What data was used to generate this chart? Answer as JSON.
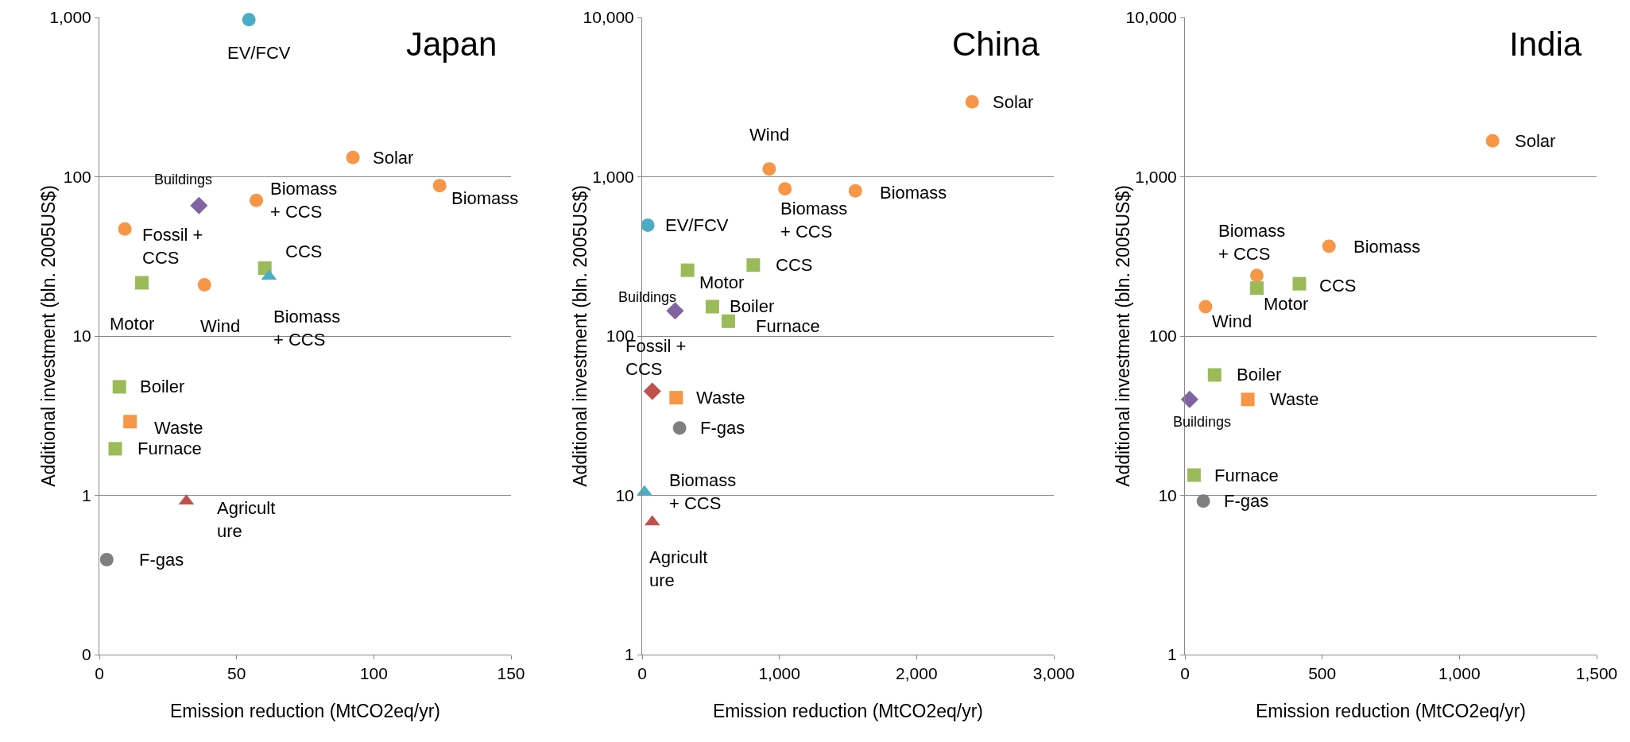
{
  "chart_data": [
    {
      "type": "scatter",
      "xlabel": "Emission reduction (MtCO2eq/yr)",
      "ylabel": "Additional investment (bln. 2005US$)",
      "log": "y",
      "grid": "y",
      "xlim": [
        0,
        150
      ],
      "xticks": [
        0,
        50,
        100,
        150
      ],
      "ylim": [
        0.1,
        1000
      ],
      "yticks": [
        {
          "value": 0.1,
          "label": "0"
        },
        1,
        10,
        100,
        {
          "value": 1000,
          "label": "1,000"
        }
      ],
      "series": [
        {
          "color": "#4bacc6",
          "marker": "circle",
          "x": [
            54.5
          ],
          "values": [
            970
          ]
        },
        {
          "color": "#f79646",
          "marker": "circle",
          "x": [
            92.4,
            124,
            57.2,
            9.3,
            38.3
          ],
          "values": [
            132,
            88,
            71,
            47,
            21
          ]
        },
        {
          "color": "#8064a2",
          "marker": "diamond",
          "x": [
            36.3
          ],
          "values": [
            66
          ]
        },
        {
          "color": "#9bbb59",
          "marker": "square",
          "x": [
            15.5,
            60.3,
            7.3,
            5.8
          ],
          "values": [
            21.6,
            26.7,
            4.8,
            1.96
          ]
        },
        {
          "color": "#4bacc6",
          "marker": "triangle",
          "x": [
            61.8
          ],
          "values": [
            23.7
          ]
        },
        {
          "color": "#f79646",
          "marker": "square",
          "x": [
            11.2
          ],
          "values": [
            2.9
          ]
        },
        {
          "color": "#c0504d",
          "marker": "triangle",
          "x": [
            31.7
          ],
          "values": [
            0.92
          ]
        },
        {
          "color": "#7f7f7f",
          "marker": "circle",
          "x": [
            2.7
          ],
          "values": [
            0.395
          ]
        }
      ],
      "annotations": [
        "Japan",
        {
          "text": "EV/FCV",
          "x": 54.5,
          "y": 970
        },
        {
          "text": "Solar",
          "x": 92.4,
          "y": 132
        },
        {
          "text": "Biomass",
          "x": 124,
          "y": 88
        },
        {
          "text": "Biomass\n+ CCS",
          "x": 57.2,
          "y": 71
        },
        {
          "text": "Buildings",
          "x": 36.3,
          "y": 66
        },
        {
          "text": "Fossil +\nCCS",
          "x": 9.3,
          "y": 47
        },
        {
          "text": "Motor",
          "x": 15.5,
          "y": 21.6
        },
        {
          "text": "Wind",
          "x": 38.3,
          "y": 21
        },
        {
          "text": "CCS",
          "x": 60.3,
          "y": 26.7
        },
        {
          "text": "Biomass\n+ CCS",
          "x": 61.8,
          "y": 23.7
        },
        {
          "text": "Boiler",
          "x": 7.3,
          "y": 4.8
        },
        {
          "text": "Waste",
          "x": 11.2,
          "y": 2.9
        },
        {
          "text": "Furnace",
          "x": 5.8,
          "y": 1.96
        },
        {
          "text": "Agricult\nure",
          "x": 31.7,
          "y": 0.92
        },
        {
          "text": "F-gas",
          "x": 2.7,
          "y": 0.395
        }
      ]
    },
    {
      "type": "scatter",
      "xlabel": "Emission reduction (MtCO2eq/yr)",
      "ylabel": "Additional investment (bln. 2005US$)",
      "log": "y",
      "grid": "y",
      "xlim": [
        0,
        3000
      ],
      "xticks": [
        0,
        {
          "value": 1000,
          "label": "1,000"
        },
        {
          "value": 2000,
          "label": "2,000"
        },
        {
          "value": 3000,
          "label": "3,000"
        }
      ],
      "ylim": [
        1,
        10000
      ],
      "yticks": [
        1,
        10,
        100,
        {
          "value": 1000,
          "label": "1,000"
        },
        {
          "value": 10000,
          "label": "10,000"
        }
      ],
      "series": [
        {
          "color": "#f79646",
          "marker": "circle",
          "x": [
            2405,
            926,
            1041,
            1554
          ],
          "values": [
            2950,
            1120,
            840,
            815
          ]
        },
        {
          "color": "#4bacc6",
          "marker": "circle",
          "x": [
            41
          ],
          "values": [
            496
          ]
        },
        {
          "color": "#9bbb59",
          "marker": "square",
          "x": [
            810,
            331,
            512,
            628
          ],
          "values": [
            279,
            259,
            153,
            124
          ]
        },
        {
          "color": "#8064a2",
          "marker": "diamond",
          "x": [
            240
          ],
          "values": [
            144
          ]
        },
        {
          "color": "#c0504d",
          "marker": "diamond",
          "x": [
            74
          ],
          "values": [
            45
          ]
        },
        {
          "color": "#f79646",
          "marker": "square",
          "x": [
            248
          ],
          "values": [
            41
          ]
        },
        {
          "color": "#7f7f7f",
          "marker": "circle",
          "x": [
            273
          ],
          "values": [
            26.5
          ]
        },
        {
          "color": "#4bacc6",
          "marker": "triangle",
          "x": [
            17
          ],
          "values": [
            10.5
          ]
        },
        {
          "color": "#c0504d",
          "marker": "triangle",
          "x": [
            74
          ],
          "values": [
            6.8
          ]
        }
      ],
      "annotations": [
        "China",
        {
          "text": "Solar",
          "x": 2405,
          "y": 2950
        },
        {
          "text": "Wind",
          "x": 926,
          "y": 1120
        },
        {
          "text": "Biomass\n+ CCS",
          "x": 1041,
          "y": 840
        },
        {
          "text": "Biomass",
          "x": 1554,
          "y": 815
        },
        {
          "text": "EV/FCV",
          "x": 41,
          "y": 496
        },
        {
          "text": "CCS",
          "x": 810,
          "y": 279
        },
        {
          "text": "Motor",
          "x": 331,
          "y": 259
        },
        {
          "text": "Buildings",
          "x": 240,
          "y": 144
        },
        {
          "text": "Boiler",
          "x": 512,
          "y": 153
        },
        {
          "text": "Furnace",
          "x": 628,
          "y": 124
        },
        {
          "text": "Fossil +\nCCS",
          "x": 74,
          "y": 45
        },
        {
          "text": "Waste",
          "x": 248,
          "y": 41
        },
        {
          "text": "F-gas",
          "x": 273,
          "y": 26.5
        },
        {
          "text": "Biomass\n+ CCS",
          "x": 17,
          "y": 10.5
        },
        {
          "text": "Agricult\nure",
          "x": 74,
          "y": 6.8
        }
      ]
    },
    {
      "type": "scatter",
      "xlabel": "Emission reduction (MtCO2eq/yr)",
      "ylabel": "Additional investment (bln. 2005US$)",
      "log": "y",
      "grid": "y",
      "xlim": [
        0,
        1500
      ],
      "xticks": [
        0,
        500,
        {
          "value": 1000,
          "label": "1,000"
        },
        {
          "value": 1500,
          "label": "1,500"
        }
      ],
      "ylim": [
        1,
        10000
      ],
      "yticks": [
        1,
        10,
        100,
        {
          "value": 1000,
          "label": "1,000"
        },
        {
          "value": 10000,
          "label": "10,000"
        }
      ],
      "series": [
        {
          "color": "#f79646",
          "marker": "circle",
          "x": [
            1121,
            525,
            262,
            75
          ],
          "values": [
            1683,
            366,
            240,
            153
          ]
        },
        {
          "color": "#9bbb59",
          "marker": "square",
          "x": [
            417,
            262,
            108,
            33
          ],
          "values": [
            213,
            200,
            57,
            13.4
          ]
        },
        {
          "color": "#8064a2",
          "marker": "diamond",
          "x": [
            17
          ],
          "values": [
            40
          ]
        },
        {
          "color": "#f79646",
          "marker": "square",
          "x": [
            229
          ],
          "values": [
            40
          ]
        },
        {
          "color": "#7f7f7f",
          "marker": "circle",
          "x": [
            67
          ],
          "values": [
            9.2
          ]
        }
      ],
      "annotations": [
        "India",
        {
          "text": "Solar",
          "x": 1121,
          "y": 1683
        },
        {
          "text": "Biomass",
          "x": 525,
          "y": 366
        },
        {
          "text": "Biomass\n+ CCS",
          "x": 262,
          "y": 240
        },
        {
          "text": "CCS",
          "x": 417,
          "y": 213
        },
        {
          "text": "Motor",
          "x": 262,
          "y": 200
        },
        {
          "text": "Wind",
          "x": 75,
          "y": 153
        },
        {
          "text": "Boiler",
          "x": 108,
          "y": 57
        },
        {
          "text": "Buildings",
          "x": 17,
          "y": 40
        },
        {
          "text": "Waste",
          "x": 229,
          "y": 40
        },
        {
          "text": "Furnace",
          "x": 33,
          "y": 13.4
        },
        {
          "text": "F-gas",
          "x": 67,
          "y": 9.2
        }
      ]
    }
  ]
}
